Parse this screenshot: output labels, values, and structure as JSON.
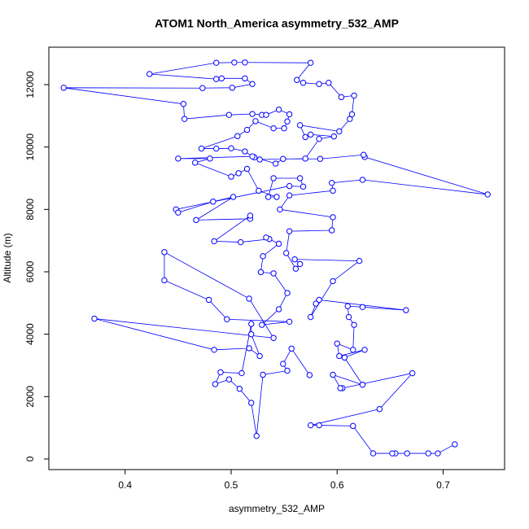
{
  "chart_data": {
    "type": "line",
    "title": "ATOM1 North_America asymmetry_532_AMP",
    "x_label": "asymmetry_532_AMP",
    "y_label": "Altitude (m)",
    "xlim": [
      0.328,
      0.758
    ],
    "ylim": [
      -340,
      13200
    ],
    "xticks": [
      0.4,
      0.5,
      0.6,
      0.7
    ],
    "yticks": [
      0,
      2000,
      4000,
      6000,
      8000,
      10000,
      12000
    ],
    "series": [
      {
        "color": "#0000ff",
        "x": [
          0.711,
          0.695,
          0.686,
          0.666,
          0.655,
          0.652,
          0.634,
          0.615,
          0.583,
          0.575,
          0.64,
          0.671,
          0.605,
          0.603,
          0.596,
          0.624,
          0.607,
          0.626,
          0.602,
          0.6,
          0.615,
          0.616,
          0.611,
          0.61,
          0.624,
          0.665,
          0.583,
          0.58,
          0.575,
          0.596,
          0.621,
          0.56,
          0.565,
          0.561,
          0.552,
          0.555,
          0.595,
          0.596,
          0.546,
          0.555,
          0.596,
          0.595,
          0.624,
          0.742,
          0.626,
          0.625,
          0.584,
          0.549,
          0.542,
          0.522,
          0.527,
          0.57,
          0.583,
          0.597,
          0.575,
          0.57,
          0.565,
          0.602,
          0.612,
          0.614,
          0.616,
          0.604,
          0.592,
          0.583,
          0.568,
          0.562,
          0.575,
          0.513,
          0.503,
          0.486,
          0.423,
          0.486,
          0.491,
          0.513,
          0.52,
          0.501,
          0.473,
          0.342,
          0.455,
          0.456,
          0.498,
          0.52,
          0.529,
          0.533,
          0.545,
          0.555,
          0.553,
          0.55,
          0.54,
          0.523,
          0.515,
          0.506,
          0.472,
          0.486,
          0.5,
          0.513,
          0.52,
          0.45,
          0.48,
          0.466,
          0.5,
          0.507,
          0.515,
          0.526,
          0.543,
          0.535,
          0.54,
          0.565,
          0.568,
          0.555,
          0.448,
          0.45,
          0.483,
          0.502,
          0.467,
          0.518,
          0.518,
          0.484,
          0.509,
          0.536,
          0.533,
          0.545,
          0.53,
          0.528,
          0.54,
          0.553,
          0.545,
          0.529,
          0.555,
          0.496,
          0.479,
          0.437,
          0.437,
          0.517,
          0.54,
          0.371,
          0.484,
          0.517,
          0.527,
          0.519,
          0.519,
          0.51,
          0.49,
          0.485,
          0.498,
          0.508,
          0.519,
          0.524,
          0.53,
          0.553,
          0.549,
          0.557,
          0.574
        ],
        "values": [
          470,
          180,
          180,
          180,
          180,
          180,
          180,
          1060,
          1080,
          1080,
          1600,
          2750,
          2270,
          2270,
          2700,
          2380,
          3250,
          3500,
          3300,
          3700,
          3500,
          4300,
          4550,
          4900,
          4870,
          4770,
          5100,
          4980,
          4550,
          5700,
          6350,
          6400,
          6250,
          6100,
          6600,
          7300,
          7330,
          7750,
          8000,
          8450,
          8600,
          8850,
          8950,
          8480,
          9680,
          9750,
          9620,
          9620,
          9470,
          9670,
          9600,
          9630,
          10260,
          10340,
          10400,
          10320,
          10700,
          10500,
          10900,
          11050,
          11650,
          11600,
          12060,
          12020,
          12060,
          12150,
          12700,
          12710,
          12710,
          12700,
          12340,
          12180,
          12200,
          12200,
          12020,
          11900,
          11890,
          11900,
          11380,
          10900,
          11030,
          11060,
          11030,
          11030,
          11200,
          11050,
          10820,
          10600,
          10600,
          10830,
          10550,
          10350,
          9950,
          9950,
          9960,
          9860,
          9700,
          9630,
          9630,
          9500,
          9050,
          9160,
          9300,
          8600,
          8400,
          8400,
          9000,
          9000,
          8730,
          8750,
          8000,
          7900,
          8250,
          8400,
          7660,
          7700,
          7800,
          6980,
          6950,
          7050,
          7100,
          6900,
          6500,
          5990,
          5950,
          5320,
          4800,
          4300,
          4400,
          4480,
          5100,
          5730,
          6630,
          5140,
          3880,
          4500,
          3500,
          3550,
          3300,
          4000,
          4330,
          2750,
          2780,
          2400,
          2550,
          2250,
          1800,
          740,
          2700,
          2830,
          3050,
          3540,
          2690
        ]
      }
    ]
  }
}
